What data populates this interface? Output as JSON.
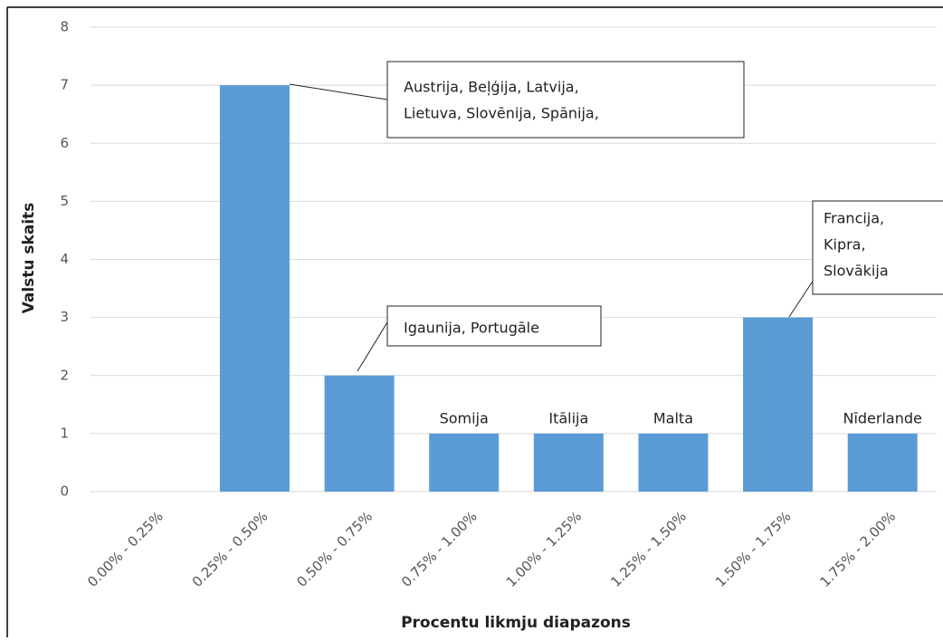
{
  "chart_data": {
    "type": "bar",
    "x_label": "Procentu likmju diapazons",
    "y_label": "Valstu skaits",
    "categories": [
      "0.00% - 0.25%",
      "0.25% - 0.50%",
      "0.50% - 0.75%",
      "0.75% - 1.00%",
      "1.00% - 1.25%",
      "1.25% - 1.50%",
      "1.50% - 1.75%",
      "1.75% - 2.00%"
    ],
    "values": [
      0,
      7,
      2,
      1,
      1,
      1,
      3,
      1
    ],
    "bar_labels": [
      null,
      [
        "Austrija, Beļģija, Latvija,",
        "Lietuva, Slovēnija, Spānija,"
      ],
      [
        "Igaunija, Portugāle"
      ],
      [
        "Somija"
      ],
      [
        "Itālija"
      ],
      [
        "Malta"
      ],
      [
        "Francija,",
        "Kipra,",
        "Slovākija"
      ],
      [
        "Nīderlande"
      ]
    ],
    "color": "#5b9bd5",
    "ylim": [
      0,
      8
    ],
    "yticks": [
      0,
      1,
      2,
      3,
      4,
      5,
      6,
      7,
      8
    ],
    "grid": true
  }
}
